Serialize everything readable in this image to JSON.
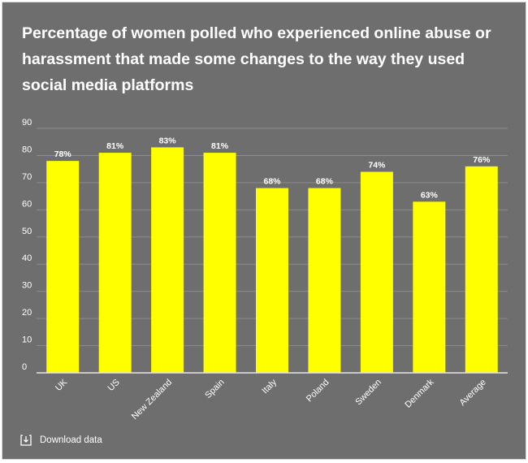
{
  "title": "Percentage of women polled who experienced online abuse or harassment that made some changes to the way they used social media platforms",
  "download_label": "Download data",
  "download_icon": "download-icon",
  "colors": {
    "background": "#6e6e6e",
    "bar": "#ffff00",
    "text": "#ffffff",
    "grid": "#8c8c8c"
  },
  "chart_data": {
    "type": "bar",
    "categories": [
      "UK",
      "US",
      "New Zealand",
      "Spain",
      "Italy",
      "Poland",
      "Sweden",
      "Denmark",
      "Average"
    ],
    "values": [
      78,
      81,
      83,
      81,
      68,
      68,
      74,
      63,
      76
    ],
    "value_labels": [
      "78%",
      "81%",
      "83%",
      "81%",
      "68%",
      "68%",
      "74%",
      "63%",
      "76%"
    ],
    "yticks": [
      0,
      10,
      20,
      30,
      40,
      50,
      60,
      70,
      80,
      90
    ],
    "ylim": [
      0,
      90
    ],
    "grid": true,
    "xlabel": "",
    "ylabel": ""
  }
}
